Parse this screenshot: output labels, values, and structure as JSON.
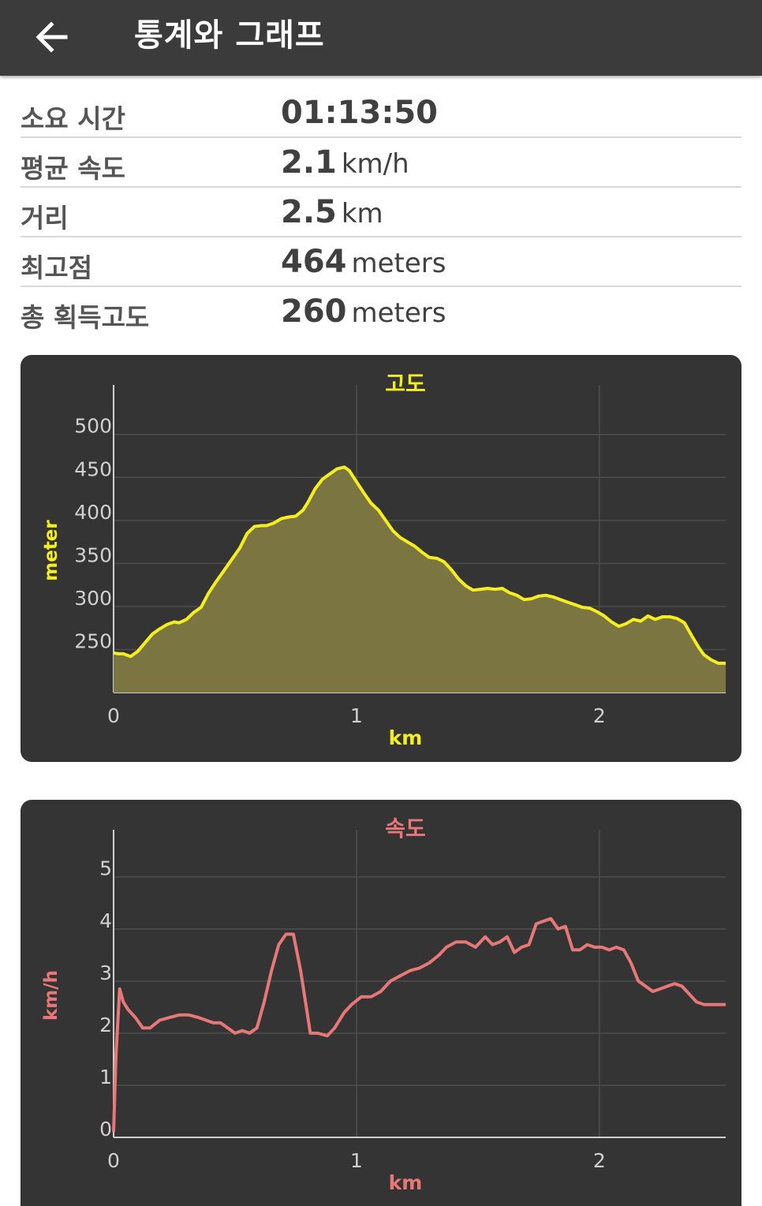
{
  "appbar": {
    "title": "통계와 그래프",
    "back_icon": "arrow-left-icon"
  },
  "stats": [
    {
      "label": "소요 시간",
      "value": "01:13:50",
      "unit": ""
    },
    {
      "label": "평균 속도",
      "value": "2.1",
      "unit": "km/h"
    },
    {
      "label": "거리",
      "value": "2.5",
      "unit": "km"
    },
    {
      "label": "최고점",
      "value": "464",
      "unit": "meters"
    },
    {
      "label": "총 획득고도",
      "value": "260",
      "unit": "meters"
    }
  ],
  "colors": {
    "appbar_bg": "#3b3b3b",
    "card_bg": "#343434",
    "elevation_line": "#f5ee1e",
    "elevation_fill": "#7a7541",
    "speed_line": "#e87878",
    "grid": "#4e4e4e",
    "tick_text": "#d0d0d0"
  },
  "chart_data": [
    {
      "type": "area",
      "title": "고도",
      "xlabel": "km",
      "ylabel": "meter",
      "xlim": [
        0,
        2.52
      ],
      "ylim": [
        200,
        530
      ],
      "x_ticks": [
        0,
        1,
        2
      ],
      "y_ticks": [
        250,
        300,
        350,
        400,
        450,
        500
      ],
      "grid": true,
      "x": [
        0,
        0.02,
        0.04,
        0.07,
        0.1,
        0.13,
        0.16,
        0.19,
        0.22,
        0.25,
        0.27,
        0.3,
        0.33,
        0.36,
        0.39,
        0.42,
        0.45,
        0.48,
        0.52,
        0.55,
        0.58,
        0.61,
        0.63,
        0.66,
        0.69,
        0.72,
        0.75,
        0.78,
        0.8,
        0.83,
        0.86,
        0.89,
        0.92,
        0.95,
        0.97,
        1.0,
        1.03,
        1.06,
        1.09,
        1.12,
        1.15,
        1.18,
        1.21,
        1.24,
        1.27,
        1.3,
        1.33,
        1.36,
        1.39,
        1.42,
        1.45,
        1.48,
        1.51,
        1.54,
        1.57,
        1.6,
        1.63,
        1.66,
        1.69,
        1.72,
        1.75,
        1.78,
        1.81,
        1.84,
        1.87,
        1.9,
        1.93,
        1.96,
        1.99,
        2.02,
        2.05,
        2.08,
        2.11,
        2.14,
        2.17,
        2.2,
        2.23,
        2.26,
        2.29,
        2.32,
        2.35,
        2.38,
        2.41,
        2.43,
        2.46,
        2.49,
        2.52
      ],
      "values": [
        246,
        245,
        245,
        242,
        248,
        258,
        268,
        274,
        279,
        282,
        281,
        285,
        293,
        299,
        315,
        328,
        340,
        352,
        368,
        385,
        393,
        394,
        394,
        397,
        402,
        404,
        405,
        412,
        421,
        437,
        448,
        454,
        460,
        462,
        458,
        445,
        432,
        420,
        412,
        400,
        388,
        380,
        375,
        370,
        363,
        357,
        356,
        352,
        343,
        332,
        324,
        319,
        320,
        321,
        320,
        321,
        316,
        313,
        308,
        309,
        312,
        313,
        311,
        308,
        305,
        302,
        299,
        298,
        294,
        289,
        282,
        277,
        280,
        285,
        283,
        289,
        285,
        288,
        288,
        286,
        281,
        266,
        252,
        244,
        238,
        234,
        234
      ]
    },
    {
      "type": "line",
      "title": "속도",
      "xlabel": "km",
      "ylabel": "km/h",
      "xlim": [
        0,
        2.52
      ],
      "ylim": [
        0,
        5.45
      ],
      "x_ticks": [
        0,
        1,
        2
      ],
      "y_ticks": [
        0,
        1,
        2,
        3,
        4,
        5
      ],
      "grid": true,
      "x": [
        0,
        0.01,
        0.025,
        0.04,
        0.06,
        0.09,
        0.12,
        0.15,
        0.19,
        0.23,
        0.27,
        0.31,
        0.35,
        0.38,
        0.41,
        0.44,
        0.47,
        0.5,
        0.53,
        0.56,
        0.59,
        0.62,
        0.65,
        0.68,
        0.71,
        0.74,
        0.77,
        0.79,
        0.81,
        0.84,
        0.88,
        0.91,
        0.95,
        0.98,
        1.02,
        1.06,
        1.1,
        1.14,
        1.18,
        1.22,
        1.26,
        1.3,
        1.34,
        1.37,
        1.41,
        1.45,
        1.49,
        1.53,
        1.56,
        1.59,
        1.62,
        1.65,
        1.68,
        1.71,
        1.74,
        1.77,
        1.8,
        1.83,
        1.86,
        1.89,
        1.92,
        1.95,
        1.98,
        2.01,
        2.04,
        2.07,
        2.1,
        2.13,
        2.16,
        2.19,
        2.22,
        2.25,
        2.28,
        2.31,
        2.34,
        2.37,
        2.4,
        2.43,
        2.46,
        2.49,
        2.52
      ],
      "values": [
        0.1,
        1.6,
        2.85,
        2.6,
        2.45,
        2.3,
        2.1,
        2.1,
        2.25,
        2.3,
        2.35,
        2.35,
        2.3,
        2.25,
        2.2,
        2.2,
        2.1,
        2.0,
        2.05,
        2.0,
        2.1,
        2.6,
        3.2,
        3.7,
        3.9,
        3.9,
        3.2,
        2.6,
        2.0,
        2.0,
        1.95,
        2.1,
        2.4,
        2.55,
        2.7,
        2.7,
        2.8,
        3.0,
        3.1,
        3.2,
        3.25,
        3.35,
        3.5,
        3.65,
        3.75,
        3.75,
        3.65,
        3.85,
        3.7,
        3.75,
        3.85,
        3.55,
        3.65,
        3.7,
        4.1,
        4.15,
        4.2,
        4.0,
        4.05,
        3.6,
        3.6,
        3.7,
        3.65,
        3.65,
        3.6,
        3.65,
        3.6,
        3.35,
        3.0,
        2.9,
        2.8,
        2.85,
        2.9,
        2.95,
        2.9,
        2.75,
        2.6,
        2.55,
        2.55,
        2.55,
        2.55
      ]
    }
  ]
}
